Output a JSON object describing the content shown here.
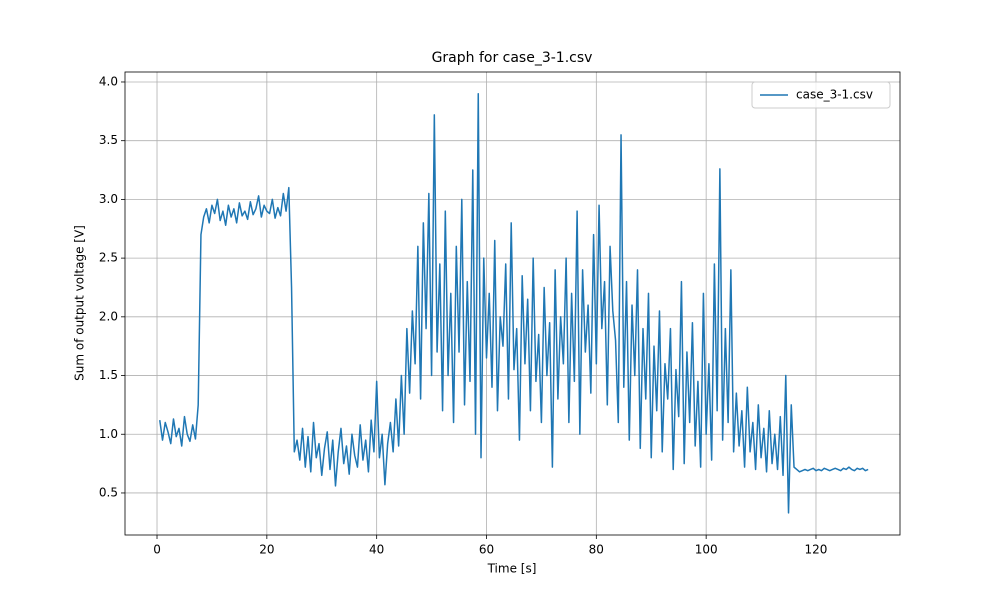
{
  "chart_data": {
    "type": "line",
    "title": "Graph for case_3-1.csv",
    "xlabel": "Time [s]",
    "ylabel": "Sum of output voltage [V]",
    "x": [
      0.5,
      1,
      1.5,
      2,
      2.5,
      3,
      3.5,
      4,
      4.5,
      5,
      5.5,
      6,
      6.5,
      7,
      7.5,
      8,
      8.5,
      9,
      9.5,
      10,
      10.5,
      11,
      11.5,
      12,
      12.5,
      13,
      13.5,
      14,
      14.5,
      15,
      15.5,
      16,
      16.5,
      17,
      17.5,
      18,
      18.5,
      19,
      19.5,
      20,
      20.5,
      21,
      21.5,
      22,
      22.5,
      23,
      23.5,
      24,
      24.5,
      25,
      25.5,
      26,
      26.5,
      27,
      27.5,
      28,
      28.5,
      29,
      29.5,
      30,
      30.5,
      31,
      31.5,
      32,
      32.5,
      33,
      33.5,
      34,
      34.5,
      35,
      35.5,
      36,
      36.5,
      37,
      37.5,
      38,
      38.5,
      39,
      39.5,
      40,
      40.5,
      41,
      41.5,
      42,
      42.5,
      43,
      43.5,
      44,
      44.5,
      45,
      45.5,
      46,
      46.5,
      47,
      47.5,
      48,
      48.5,
      49,
      49.5,
      50,
      50.5,
      51,
      51.5,
      52,
      52.5,
      53,
      53.5,
      54,
      54.5,
      55,
      55.5,
      56,
      56.5,
      57,
      57.5,
      58,
      58.5,
      59,
      59.5,
      60,
      60.5,
      61,
      61.5,
      62,
      62.5,
      63,
      63.5,
      64,
      64.5,
      65,
      65.5,
      66,
      66.5,
      67,
      67.5,
      68,
      68.5,
      69,
      69.5,
      70,
      70.5,
      71,
      71.5,
      72,
      72.5,
      73,
      73.5,
      74,
      74.5,
      75,
      75.5,
      76,
      76.5,
      77,
      77.5,
      78,
      78.5,
      79,
      79.5,
      80,
      80.5,
      81,
      81.5,
      82,
      82.5,
      83,
      83.5,
      84,
      84.5,
      85,
      85.5,
      86,
      86.5,
      87,
      87.5,
      88,
      88.5,
      89,
      89.5,
      90,
      90.5,
      91,
      91.5,
      92,
      92.5,
      93,
      93.5,
      94,
      94.5,
      95,
      95.5,
      96,
      96.5,
      97,
      97.5,
      98,
      98.5,
      99,
      99.5,
      100,
      100.5,
      101,
      101.5,
      102,
      102.5,
      103,
      103.5,
      104,
      104.5,
      105,
      105.5,
      106,
      106.5,
      107,
      107.5,
      108,
      108.5,
      109,
      109.5,
      110,
      110.5,
      111,
      111.5,
      112,
      112.5,
      113,
      113.5,
      114,
      114.5,
      115,
      115.5,
      116,
      116.5,
      117,
      117.5,
      118,
      118.5,
      119,
      119.5,
      120,
      120.5,
      121,
      121.5,
      122,
      122.5,
      123,
      123.5,
      124,
      124.5,
      125,
      125.5,
      126,
      126.5,
      127,
      127.5,
      128,
      128.5,
      129,
      129.5
    ],
    "series": [
      {
        "name": "case_3-1.csv",
        "color": "#1f77b4",
        "values": [
          1.12,
          0.95,
          1.1,
          1.02,
          0.92,
          1.13,
          0.98,
          1.05,
          0.9,
          1.15,
          1.0,
          0.94,
          1.08,
          0.96,
          1.25,
          2.7,
          2.85,
          2.92,
          2.8,
          2.95,
          2.88,
          3.0,
          2.82,
          2.9,
          2.78,
          2.95,
          2.85,
          2.92,
          2.8,
          2.97,
          2.86,
          2.9,
          2.83,
          2.98,
          2.87,
          2.92,
          3.03,
          2.85,
          2.95,
          2.9,
          2.88,
          3.0,
          2.84,
          2.93,
          2.86,
          3.05,
          2.9,
          3.1,
          2.25,
          0.85,
          0.95,
          0.78,
          1.05,
          0.72,
          0.98,
          0.68,
          1.1,
          0.8,
          0.92,
          0.65,
          0.88,
          1.02,
          0.7,
          0.95,
          0.56,
          0.85,
          1.05,
          0.75,
          0.9,
          0.66,
          1.0,
          0.82,
          0.72,
          1.08,
          0.78,
          0.95,
          0.68,
          1.12,
          0.85,
          1.45,
          0.8,
          1.0,
          0.57,
          0.92,
          1.1,
          0.85,
          1.3,
          0.9,
          1.5,
          1.0,
          1.9,
          1.35,
          2.05,
          1.6,
          2.6,
          1.3,
          2.8,
          1.9,
          3.05,
          1.5,
          3.72,
          1.7,
          2.45,
          1.2,
          2.9,
          1.5,
          2.2,
          1.1,
          2.6,
          1.7,
          3.0,
          1.25,
          2.3,
          1.45,
          3.25,
          1.0,
          3.9,
          0.8,
          2.5,
          1.65,
          2.2,
          1.4,
          2.65,
          1.2,
          2.0,
          1.75,
          2.45,
          1.3,
          2.8,
          1.55,
          1.9,
          0.95,
          2.35,
          1.6,
          2.15,
          1.2,
          2.5,
          1.45,
          1.85,
          1.1,
          2.25,
          1.5,
          1.95,
          0.72,
          2.4,
          1.3,
          2.0,
          1.6,
          2.5,
          1.1,
          2.2,
          1.45,
          2.9,
          1.0,
          2.4,
          1.7,
          2.1,
          1.35,
          2.7,
          1.6,
          2.95,
          1.9,
          2.3,
          1.25,
          2.6,
          2.05,
          1.8,
          1.1,
          3.55,
          1.4,
          2.3,
          0.95,
          2.1,
          1.5,
          2.4,
          0.88,
          1.9,
          1.3,
          2.2,
          0.8,
          1.75,
          1.2,
          2.05,
          0.85,
          1.6,
          1.3,
          1.9,
          0.7,
          1.55,
          1.15,
          2.3,
          0.75,
          1.7,
          1.1,
          1.95,
          0.9,
          1.45,
          0.72,
          2.2,
          1.0,
          1.6,
          0.78,
          2.45,
          1.2,
          3.26,
          0.95,
          1.9,
          1.1,
          2.4,
          0.85,
          1.35,
          0.9,
          1.2,
          0.72,
          1.4,
          0.85,
          1.1,
          0.7,
          1.25,
          0.8,
          1.05,
          0.68,
          1.2,
          0.75,
          1.0,
          0.7,
          1.15,
          0.65,
          1.5,
          0.33,
          1.25,
          0.72,
          0.7,
          0.68,
          0.69,
          0.7,
          0.69,
          0.7,
          0.71,
          0.69,
          0.7,
          0.69,
          0.71,
          0.7,
          0.69,
          0.7,
          0.71,
          0.7,
          0.69,
          0.71,
          0.7,
          0.72,
          0.7,
          0.69,
          0.71,
          0.7,
          0.71,
          0.69,
          0.7
        ]
      }
    ],
    "xlim": [
      -5.83,
      135.3
    ],
    "ylim": [
      0.142,
      4.085
    ],
    "xticks": [
      0,
      20,
      40,
      60,
      80,
      100,
      120
    ],
    "yticks": [
      0.5,
      {
        "value": 1.0,
        "label": "1.0"
      },
      1.5,
      {
        "value": 2.0,
        "label": "2.0"
      },
      2.5,
      {
        "value": 3.0,
        "label": "3.0"
      },
      3.5,
      {
        "value": 4.0,
        "label": "4.0"
      }
    ],
    "grid": true,
    "legend": "upper right"
  }
}
